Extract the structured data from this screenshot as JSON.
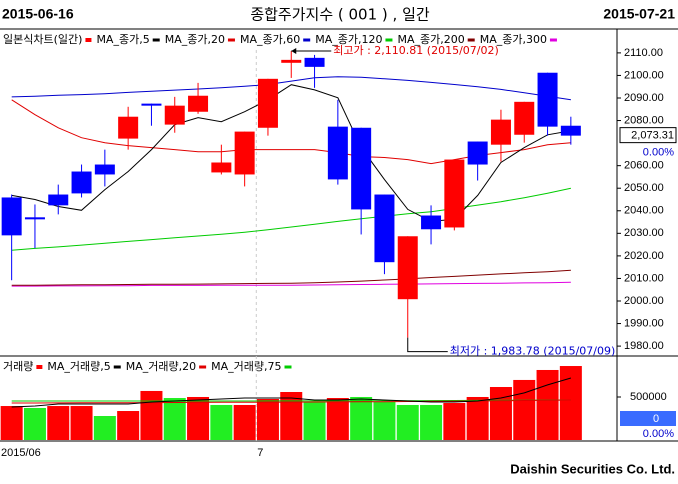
{
  "header": {
    "start_date": "2015-06-16",
    "title": "종합주가지수 ( 001 ) , 일간",
    "end_date": "2015-07-21"
  },
  "chart_data": [
    {
      "type": "candlestick",
      "legend_title": "일본식차트(일간)",
      "up_color": "#ff0000",
      "down_color": "#0000ff",
      "categories": [
        "2015/06",
        null,
        null,
        null,
        null,
        null,
        null,
        null,
        null,
        null,
        null,
        "7",
        null,
        null,
        null,
        null,
        null,
        null,
        null,
        null,
        null,
        null,
        null,
        null,
        null
      ],
      "open": [
        2045.9,
        2037.1,
        2047.2,
        2057.4,
        2060.5,
        2072.0,
        2087.5,
        2078.2,
        2083.9,
        2057.0,
        2056.1,
        2076.8,
        2105.6,
        2107.8,
        2077.3,
        2076.8,
        2047.2,
        2000.8,
        2037.9,
        2032.6,
        2070.7,
        2069.3,
        2073.7,
        2101.2,
        2077.7
      ],
      "high": [
        2047.2,
        2042.8,
        2051.6,
        2060.5,
        2067.1,
        2086.1,
        2087.5,
        2090.5,
        2096.7,
        2069.3,
        2075.1,
        2098.5,
        2110.81,
        2109.1,
        2089.2,
        2076.8,
        2047.2,
        2028.7,
        2042.4,
        2062.7,
        2070.7,
        2084.8,
        2088.3,
        2101.2,
        2081.7
      ],
      "low": [
        2009.2,
        2023.4,
        2038.4,
        2045.9,
        2050.8,
        2067.1,
        2077.7,
        2074.6,
        2083.0,
        2056.1,
        2050.8,
        2073.3,
        2098.9,
        2094.5,
        2051.6,
        2029.5,
        2011.9,
        1983.78,
        2025.1,
        2031.3,
        2053.4,
        2061.8,
        2070.2,
        2073.3,
        2069.3
      ],
      "close": [
        2029.1,
        2036.2,
        2042.4,
        2047.7,
        2056.1,
        2081.7,
        2086.6,
        2086.6,
        2091.0,
        2061.4,
        2075.1,
        2098.5,
        2106.9,
        2103.8,
        2053.9,
        2040.6,
        2017.2,
        2028.7,
        2031.8,
        2062.7,
        2060.5,
        2080.4,
        2088.3,
        2077.3,
        2073.31
      ],
      "series": [
        {
          "name": "MA_종가,5",
          "color": "#000000",
          "values": [
            2046.8,
            2045.0,
            2041.9,
            2040.2,
            2049.4,
            2057.4,
            2067.1,
            2078.2,
            2081.3,
            2079.5,
            2083.9,
            2089.2,
            2095.9,
            2093.6,
            2090.1,
            2068.0,
            2053.9,
            2040.6,
            2035.3,
            2036.2,
            2046.8,
            2061.4,
            2068.0,
            2073.7,
            2075.5
          ]
        },
        {
          "name": "MA_종가,20",
          "color": "#e00000",
          "values": [
            2089.2,
            2082.6,
            2076.8,
            2072.4,
            2070.2,
            2068.9,
            2068.0,
            2067.1,
            2066.2,
            2066.2,
            2067.1,
            2067.1,
            2067.1,
            2067.1,
            2065.8,
            2064.0,
            2063.6,
            2062.7,
            2060.9,
            2062.7,
            2064.5,
            2065.8,
            2067.1,
            2069.3,
            2070.2
          ]
        },
        {
          "name": "MA_종가,60",
          "color": "#0000cc",
          "values": [
            2090.5,
            2090.8,
            2091.2,
            2091.5,
            2091.9,
            2092.5,
            2093.0,
            2093.5,
            2094.0,
            2094.5,
            2095.2,
            2096.0,
            2097.5,
            2099.0,
            2099.4,
            2099.2,
            2098.5,
            2097.8,
            2096.9,
            2096.0,
            2095.0,
            2093.8,
            2092.3,
            2090.8,
            2089.2
          ]
        },
        {
          "name": "MA_종가,120",
          "color": "#00cc00",
          "values": [
            2022.5,
            2023.3,
            2024.0,
            2024.8,
            2025.6,
            2026.4,
            2027.2,
            2028.0,
            2028.8,
            2029.6,
            2030.5,
            2031.6,
            2032.8,
            2034.0,
            2035.3,
            2036.5,
            2037.6,
            2038.7,
            2039.6,
            2041.0,
            2042.5,
            2044.0,
            2045.8,
            2047.8,
            2050.0
          ]
        },
        {
          "name": "MA_종가,200",
          "color": "#800000",
          "values": [
            2007.0,
            2007.0,
            2007.1,
            2007.2,
            2007.2,
            2007.3,
            2007.4,
            2007.4,
            2007.5,
            2007.6,
            2007.7,
            2007.8,
            2007.9,
            2008.1,
            2008.4,
            2008.8,
            2009.3,
            2009.8,
            2010.4,
            2010.9,
            2011.5,
            2012.0,
            2012.5,
            2013.0,
            2013.6
          ]
        },
        {
          "name": "MA_종가,300",
          "color": "#e000e0",
          "values": [
            2006.6,
            2006.6,
            2006.7,
            2006.7,
            2006.8,
            2006.8,
            2006.9,
            2006.9,
            2006.9,
            2007.0,
            2007.0,
            2007.0,
            2007.0,
            2007.1,
            2007.2,
            2007.3,
            2007.4,
            2007.5,
            2007.6,
            2007.7,
            2007.8,
            2007.9,
            2008.0,
            2008.1,
            2008.3
          ]
        }
      ],
      "ylim": [
        1976.5,
        2119.7
      ],
      "yticks": [
        {
          "value": 2110,
          "label": "2110.00"
        },
        {
          "value": 2100,
          "label": "2100.00"
        },
        {
          "value": 2090,
          "label": "2090.00"
        },
        {
          "value": 2080,
          "label": "2080.00"
        },
        {
          "value": 2060,
          "label": "2060.00"
        },
        {
          "value": 2050,
          "label": "2050.00"
        },
        {
          "value": 2040,
          "label": "2040.00"
        },
        {
          "value": 2030,
          "label": "2030.00"
        },
        {
          "value": 2020,
          "label": "2020.00"
        },
        {
          "value": 2010,
          "label": "2010.00"
        },
        {
          "value": 2000,
          "label": "2000.00"
        },
        {
          "value": 1990,
          "label": "1990.00"
        },
        {
          "value": 1980,
          "label": "1980.00"
        }
      ],
      "current": {
        "value": 2073.31,
        "label": "2,073.31"
      },
      "change": "0.00%",
      "high_note": "최고가 : 2,110.81 (2015/07/02)",
      "low_note": "최저가 : 1,983.78 (2015/07/09)"
    },
    {
      "type": "bar",
      "legend_title": "거래량",
      "title_color": "#ff0000",
      "values": [
        395000,
        372000,
        395000,
        395000,
        279000,
        337000,
        570000,
        488000,
        500000,
        407000,
        407000,
        477000,
        558000,
        442000,
        488000,
        500000,
        442000,
        407000,
        407000,
        430000,
        500000,
        616000,
        698000,
        814000,
        860000
      ],
      "colors": [
        "#ff0000",
        "#22ee22",
        "#ff0000",
        "#ff0000",
        "#22ee22",
        "#ff0000",
        "#ff0000",
        "#22ee22",
        "#ff0000",
        "#22ee22",
        "#ff0000",
        "#ff0000",
        "#ff0000",
        "#22ee22",
        "#ff0000",
        "#22ee22",
        "#22ee22",
        "#22ee22",
        "#22ee22",
        "#ff0000",
        "#ff0000",
        "#ff0000",
        "#ff0000",
        "#ff0000",
        "#ff0000"
      ],
      "series": [
        {
          "name": "MA_거래량,5",
          "color": "#000000",
          "values": [
            384000,
            395000,
            419000,
            419000,
            419000,
            419000,
            442000,
            453000,
            465000,
            477000,
            488000,
            488000,
            488000,
            465000,
            465000,
            477000,
            465000,
            453000,
            442000,
            442000,
            453000,
            488000,
            547000,
            640000,
            721000
          ]
        },
        {
          "name": "MA_거래량,20",
          "color": "#e00000",
          "values": [
            430000,
            430000,
            431000,
            432000,
            433000,
            434000,
            435000,
            436000,
            437000,
            438000,
            439000,
            440000,
            441000,
            442000,
            443000,
            444000,
            445000,
            447000,
            449000,
            451000,
            453000,
            456000,
            459000,
            462000,
            465000
          ]
        },
        {
          "name": "MA_거래량,75",
          "color": "#00cc00",
          "values": [
            453000,
            453000,
            453000,
            453000,
            453000,
            453000,
            453000,
            453000,
            453000,
            453000,
            453000,
            454000,
            454000,
            455000,
            455000,
            456000,
            456000,
            457000,
            458000,
            459000,
            460000,
            461000,
            462000,
            464000,
            465000
          ]
        }
      ],
      "ylim": [
        0,
        930000
      ],
      "yticks": [
        500000
      ],
      "current_label": "0",
      "change": "0.00%"
    }
  ],
  "footer": "Daishin Securities Co. Ltd."
}
